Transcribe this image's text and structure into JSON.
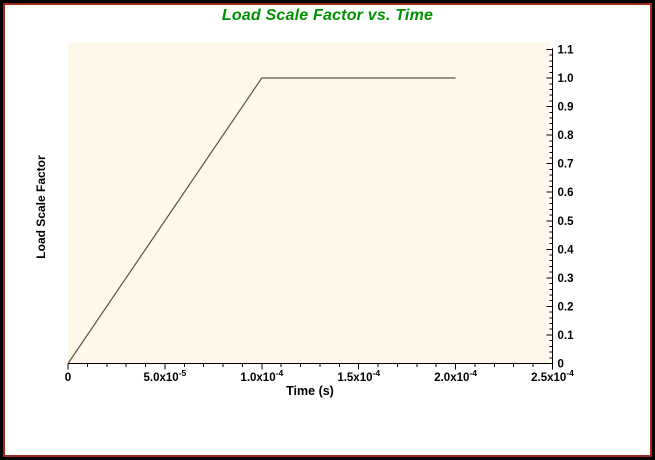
{
  "chart_data": {
    "type": "line",
    "title": "Load Scale Factor vs. Time",
    "xlabel": "Time (s)",
    "ylabel": "Load Scale Factor",
    "xlim": [
      0,
      0.00025
    ],
    "ylim": [
      0,
      1.1
    ],
    "grid": false,
    "legend_position": "none",
    "x_ticks": [
      {
        "v": 0,
        "label": "0"
      },
      {
        "v": 5e-05,
        "label": "5.0x10^-5"
      },
      {
        "v": 0.0001,
        "label": "1.0x10^-4"
      },
      {
        "v": 0.00015,
        "label": "1.5x10^-4"
      },
      {
        "v": 0.0002,
        "label": "2.0x10^-4"
      },
      {
        "v": 0.00025,
        "label": "2.5x10^-4"
      }
    ],
    "x_minor_step": 1e-05,
    "y_ticks": [
      {
        "v": 0,
        "label": "0"
      },
      {
        "v": 0.1,
        "label": "0.1"
      },
      {
        "v": 0.2,
        "label": "0.2"
      },
      {
        "v": 0.3,
        "label": "0.3"
      },
      {
        "v": 0.4,
        "label": "0.4"
      },
      {
        "v": 0.5,
        "label": "0.5"
      },
      {
        "v": 0.6,
        "label": "0.6"
      },
      {
        "v": 0.7,
        "label": "0.7"
      },
      {
        "v": 0.8,
        "label": "0.8"
      },
      {
        "v": 0.9,
        "label": "0.9"
      },
      {
        "v": 1.0,
        "label": "1.0"
      },
      {
        "v": 1.1,
        "label": "1.1"
      }
    ],
    "y_minor_step": 0.02,
    "series": [
      {
        "name": "Load Scale Factor",
        "points": [
          [
            0,
            0
          ],
          [
            0.0001,
            1.0
          ],
          [
            0.0002,
            1.0
          ]
        ]
      }
    ],
    "colors": {
      "title": "#009000",
      "line": "#56544B",
      "axis": "#000000",
      "tick_label": "#000000",
      "plot_bg": "#FDF8EA",
      "frame_border": "#000000",
      "frame_inner_line": "#9E2A20",
      "background": "#FFFFFF"
    }
  }
}
